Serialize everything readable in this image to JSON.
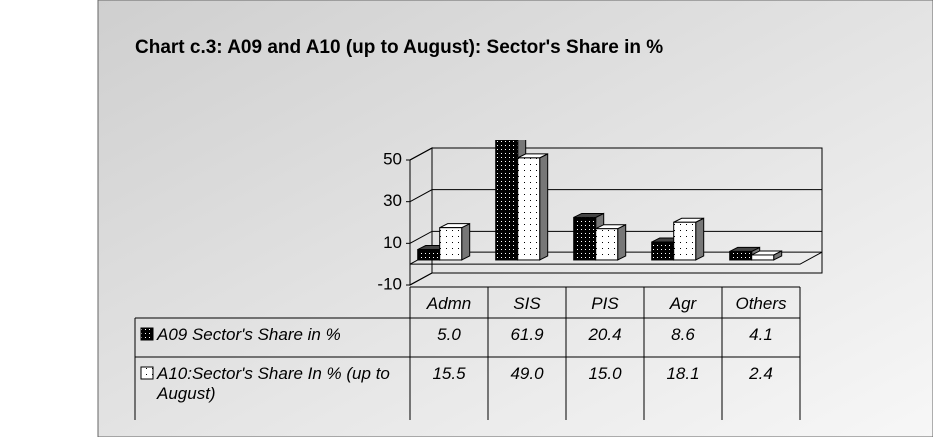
{
  "chart_data": {
    "type": "bar",
    "title": "Chart c.3: A09 and A10 (up to August): Sector's Share in %",
    "categories": [
      "Admn",
      "SIS",
      "PIS",
      "Agr",
      "Others"
    ],
    "series": [
      {
        "name": "A09 Sector's Share in %",
        "color": "#000000",
        "values": [
          5.0,
          61.9,
          20.4,
          8.6,
          4.1
        ],
        "value_labels": [
          "5.0",
          "61.9",
          "20.4",
          "8.6",
          "4.1"
        ]
      },
      {
        "name": "A10:Sector's Share In % (up to August)",
        "color": "#ffffff",
        "values": [
          15.5,
          49.0,
          15.0,
          18.1,
          2.4
        ],
        "value_labels": [
          "15.5",
          "49.0",
          "15.0",
          "18.1",
          "2.4"
        ]
      }
    ],
    "ylim": [
      -10,
      50
    ],
    "yticks": [
      -10,
      10,
      30,
      50
    ],
    "grid": true
  }
}
